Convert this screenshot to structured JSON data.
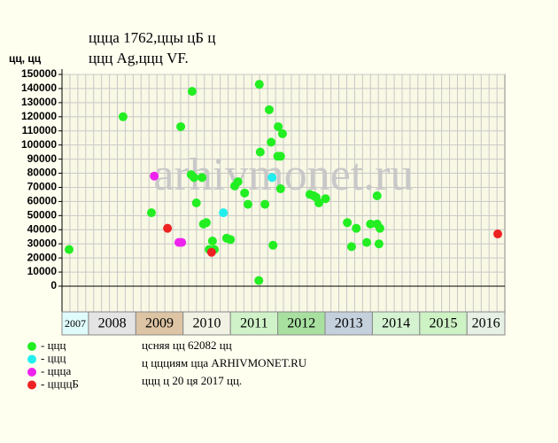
{
  "chart_data": {
    "type": "scatter",
    "title": "ццца 1762,ццы цБ ц",
    "subtitle": "ццц Ag,ццц VF.",
    "y_label": "цц, цц",
    "watermark": "arhivmonet.ru",
    "notes": [
      "цcняя цц 62082 цц",
      "ц ццциям цца ARHIVMONET.RU",
      "ццц ц 20 ця 2017 цц."
    ],
    "xlim": [
      2007.44,
      2016.8
    ],
    "xticks": [
      2007,
      2008,
      2009,
      2010,
      2011,
      2012,
      2013,
      2014,
      2015,
      2016
    ],
    "xtick_colors": [
      "#e0fbfb",
      "#e4e4e4",
      "#dcc4a4",
      "#f2f2e4",
      "#d0f2c8",
      "#a8e0a0",
      "#c4d0dc",
      "#d4f2d0",
      "#cdf2c4",
      "#e6f0e4"
    ],
    "ylim": [
      0,
      150000
    ],
    "yticks": [
      0,
      10000,
      20000,
      30000,
      40000,
      50000,
      60000,
      70000,
      80000,
      90000,
      100000,
      110000,
      120000,
      130000,
      140000,
      150000
    ],
    "grid": true,
    "series": [
      {
        "name": "- ццц",
        "color": "#22ee22",
        "x": [
          2007.59,
          2008.73,
          2009.33,
          2009.95,
          2010.19,
          2010.17,
          2010.23,
          2010.4,
          2010.28,
          2010.43,
          2010.49,
          2010.62,
          2010.55,
          2010.66,
          2010.92,
          2011.0,
          2011.09,
          2011.16,
          2011.3,
          2011.37,
          2011.6,
          2011.61,
          2011.63,
          2011.73,
          2011.82,
          2011.86,
          2011.9,
          2012.01,
          2012.0,
          2012.06,
          2012.1,
          2012.06,
          2012.68,
          2012.76,
          2012.81,
          2012.87,
          2013.01,
          2013.47,
          2013.56,
          2013.66,
          2013.88,
          2013.96,
          2014.1,
          2014.1,
          2014.16,
          2014.14
        ],
        "values": [
          26000,
          120000,
          52000,
          113000,
          138000,
          79000,
          77000,
          77000,
          59000,
          44000,
          45000,
          32000,
          26000,
          26000,
          34000,
          33000,
          71000,
          74000,
          66000,
          58000,
          4000,
          143000,
          95000,
          58000,
          125000,
          102000,
          29000,
          113000,
          92000,
          92000,
          108000,
          69000,
          65000,
          64000,
          63000,
          59000,
          62000,
          45000,
          28000,
          41000,
          31000,
          44000,
          64000,
          44000,
          41000,
          30000
        ]
      },
      {
        "name": "- ццц",
        "color": "#22eeee",
        "x": [
          2010.85,
          2011.88
        ],
        "values": [
          52000,
          77000
        ]
      },
      {
        "name": "- цццa",
        "color": "#ee22ee",
        "x": [
          2009.39,
          2009.91,
          2009.97
        ],
        "values": [
          78000,
          31000,
          31000
        ]
      },
      {
        "name": "- ццццБ",
        "color": "#ee2222",
        "x": [
          2009.67,
          2010.6,
          2016.65
        ],
        "values": [
          41000,
          24000,
          37000
        ]
      }
    ]
  }
}
